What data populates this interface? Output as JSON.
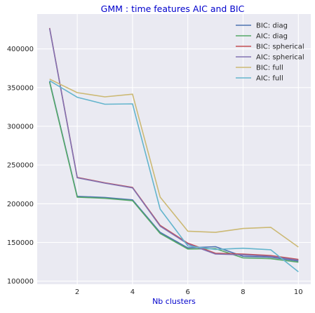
{
  "chart_data": {
    "type": "line",
    "title": "GMM : time features AIC and BIC",
    "xlabel": "Nb clusters",
    "ylabel": "",
    "x": [
      1,
      2,
      3,
      4,
      5,
      6,
      7,
      8,
      9,
      10
    ],
    "xlim": [
      0.55,
      10.45
    ],
    "ylim": [
      96000,
      445000
    ],
    "xticks": [
      2,
      4,
      6,
      8,
      10
    ],
    "yticks": [
      100000,
      150000,
      200000,
      250000,
      300000,
      350000,
      400000
    ],
    "grid": true,
    "legend_position": "top-right",
    "background": "#eaeaf2",
    "series": [
      {
        "name": "BIC: diag",
        "color": "#4c72b0",
        "values": [
          358000,
          209500,
          208000,
          205000,
          163000,
          143000,
          144500,
          132000,
          131000,
          126000
        ]
      },
      {
        "name": "AIC: diag",
        "color": "#55a868",
        "values": [
          357000,
          208500,
          207000,
          204000,
          161500,
          141500,
          142000,
          130000,
          129000,
          124500
        ]
      },
      {
        "name": "BIC: spherical",
        "color": "#c44e52",
        "values": [
          427000,
          234000,
          227000,
          221000,
          172000,
          149000,
          136000,
          135000,
          133000,
          128000
        ]
      },
      {
        "name": "AIC: spherical",
        "color": "#8172b2",
        "values": [
          426500,
          233500,
          226500,
          220500,
          171000,
          148000,
          135000,
          134000,
          132000,
          127000
        ]
      },
      {
        "name": "BIC: full",
        "color": "#ccb974",
        "values": [
          361000,
          343500,
          338000,
          341500,
          208500,
          164500,
          163000,
          168000,
          169500,
          144000
        ]
      },
      {
        "name": "AIC: full",
        "color": "#64b5cd",
        "values": [
          359000,
          337500,
          328500,
          329000,
          193000,
          145500,
          141000,
          142500,
          140500,
          112000
        ]
      }
    ]
  }
}
